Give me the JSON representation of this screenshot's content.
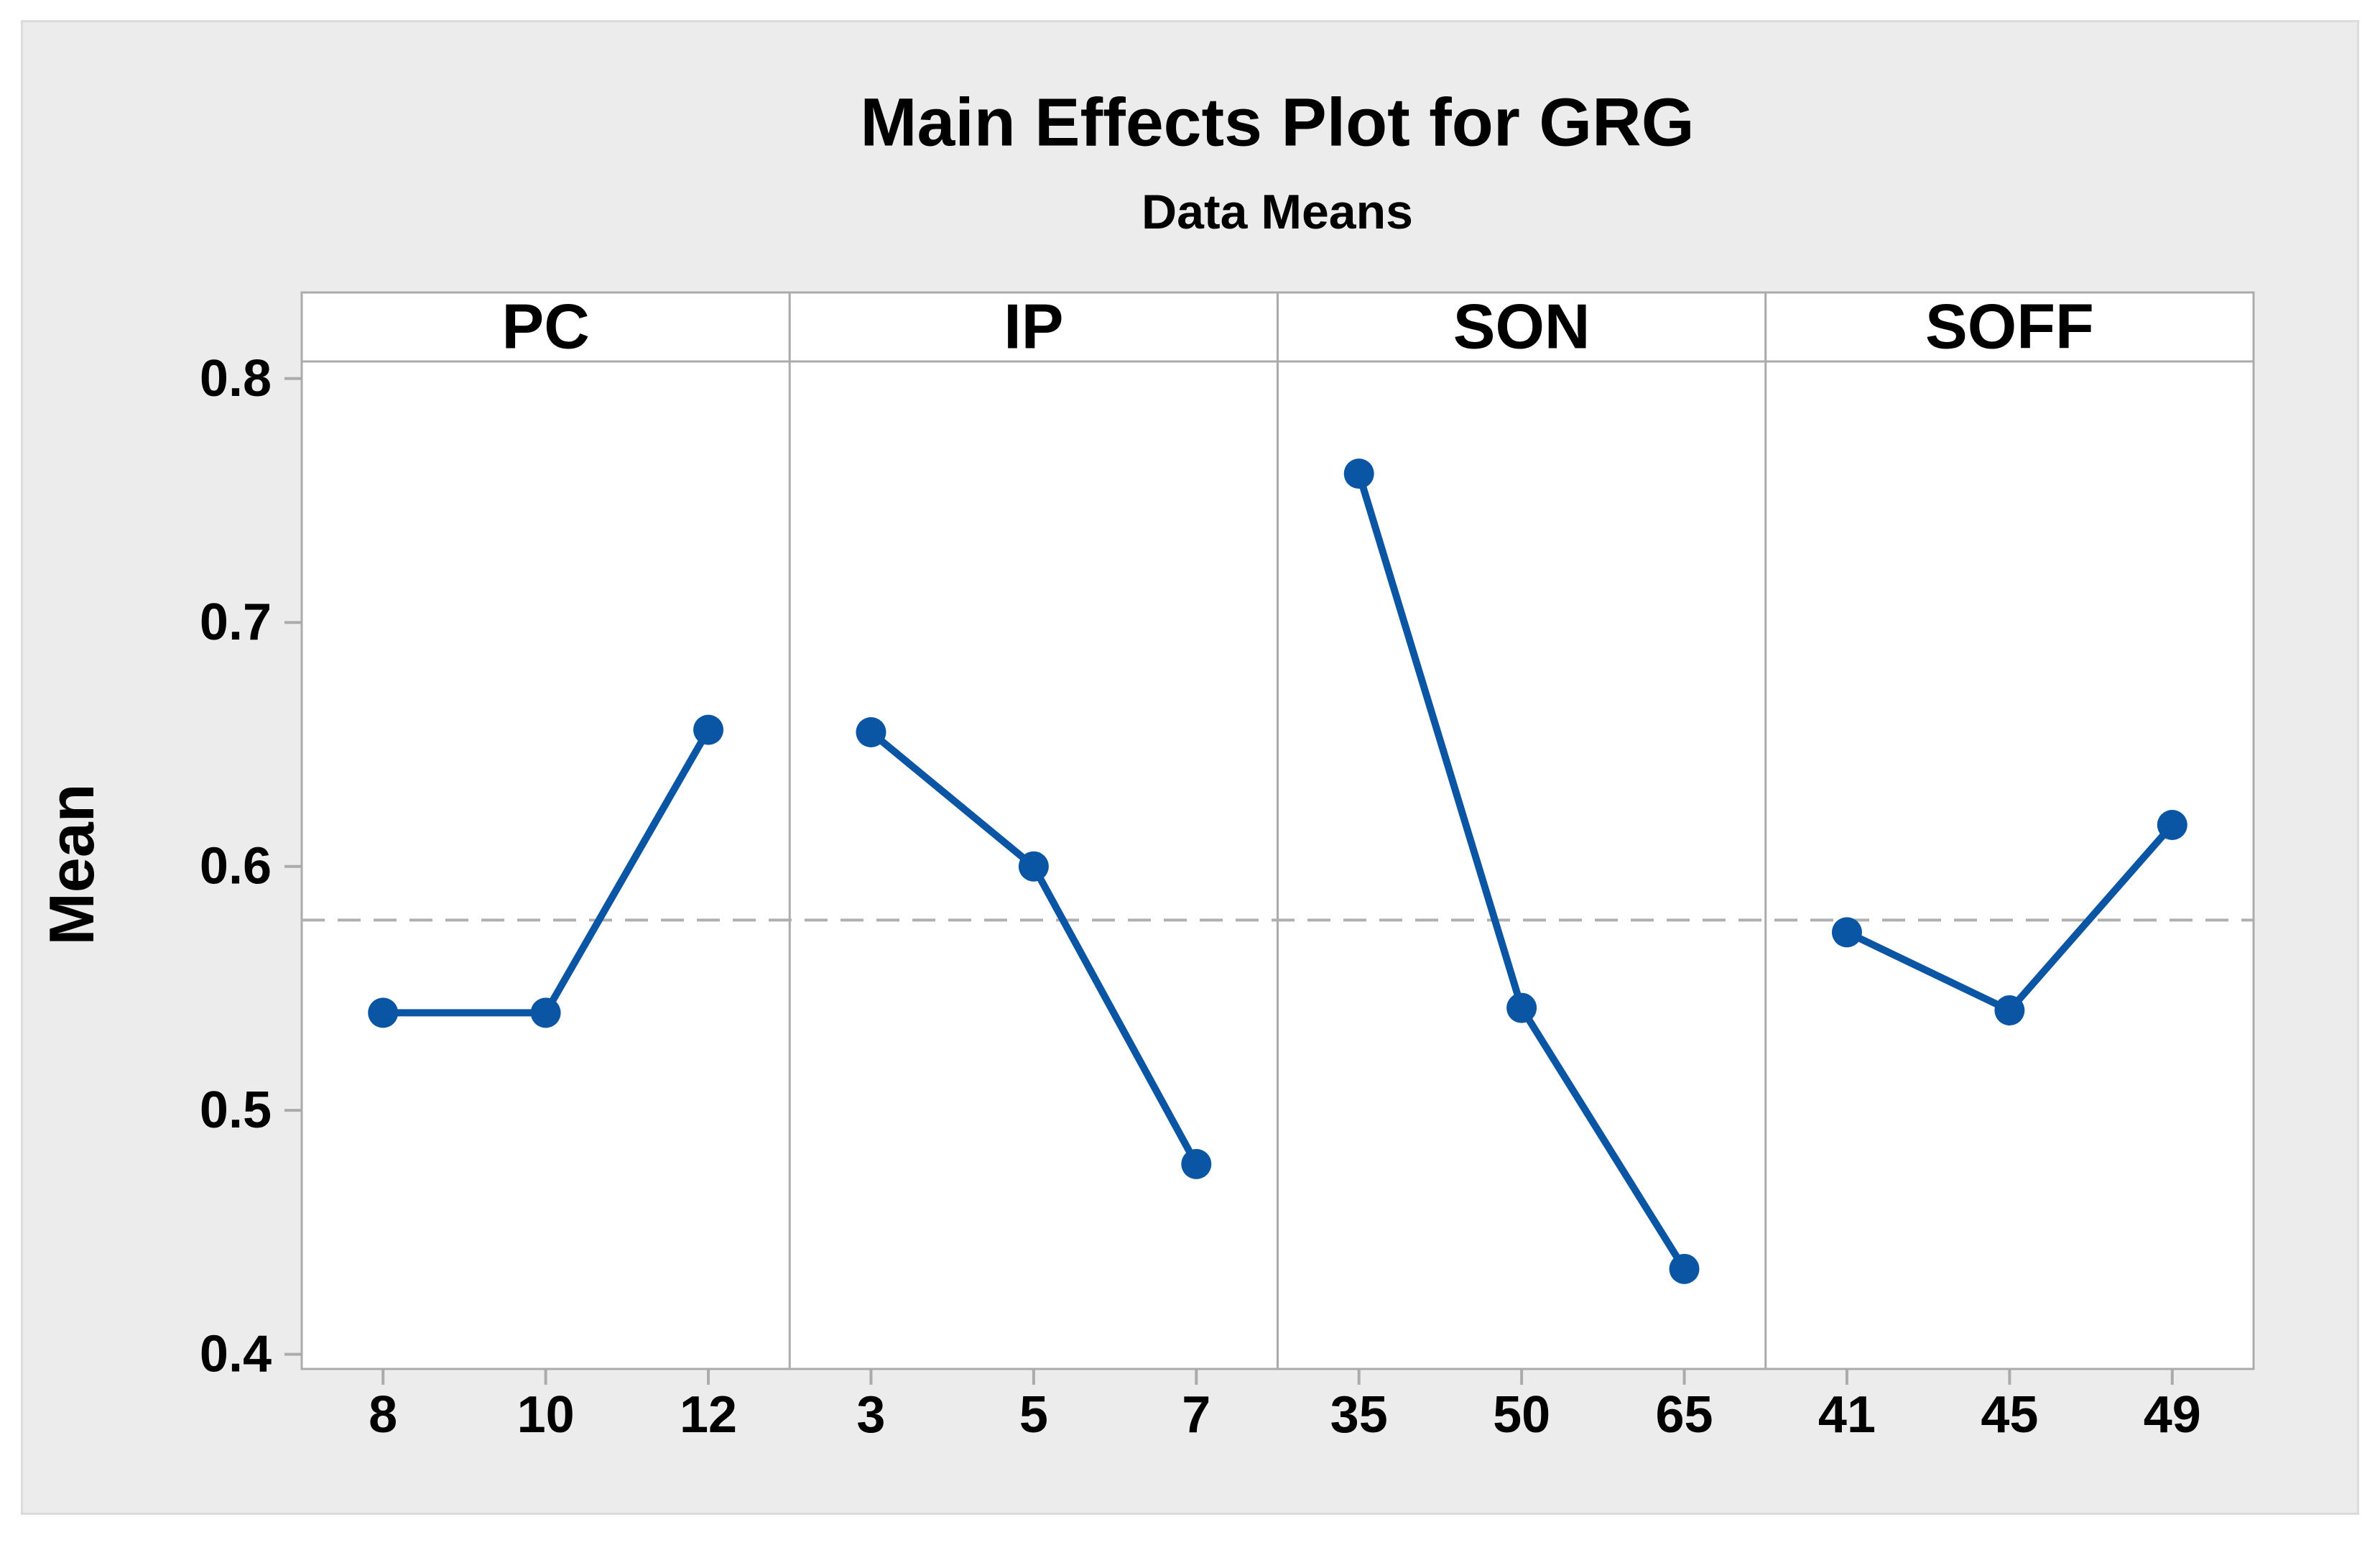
{
  "figure": {
    "title": "Main Effects Plot for GRG",
    "subtitle": "Data Means",
    "y_axis_label": "Mean"
  },
  "colors": {
    "series": "#0B56A4",
    "axis_gray": "#ABABAB",
    "reference_gray": "#B0B0B0",
    "figure_bg": "#ECECEC",
    "figure_border": "#DBDBDB",
    "panel_bg": "#FFFFFF",
    "text": "#000000"
  },
  "chart_data": {
    "type": "line",
    "title": "Main Effects Plot for GRG",
    "subtitle": "Data Means",
    "xlabel": "",
    "ylabel": "Mean",
    "ylim": [
      0.394,
      0.807
    ],
    "y_ticks": [
      "0.8",
      "0.7",
      "0.6",
      "0.5",
      "0.4"
    ],
    "y_tick_values": [
      0.8,
      0.7,
      0.6,
      0.5,
      0.4
    ],
    "reference_line": {
      "value": 0.578,
      "style": "dashed",
      "meaning": "grand mean"
    },
    "grid": false,
    "legend": false,
    "panels": [
      {
        "label": "PC",
        "categories": [
          "8",
          "10",
          "12"
        ],
        "values": [
          0.54,
          0.54,
          0.656
        ]
      },
      {
        "label": "IP",
        "categories": [
          "3",
          "5",
          "7"
        ],
        "values": [
          0.655,
          0.6,
          0.478
        ]
      },
      {
        "label": "SON",
        "categories": [
          "35",
          "50",
          "65"
        ],
        "values": [
          0.761,
          0.542,
          0.435
        ]
      },
      {
        "label": "SOFF",
        "categories": [
          "41",
          "45",
          "49"
        ],
        "values": [
          0.573,
          0.541,
          0.617
        ]
      }
    ]
  }
}
